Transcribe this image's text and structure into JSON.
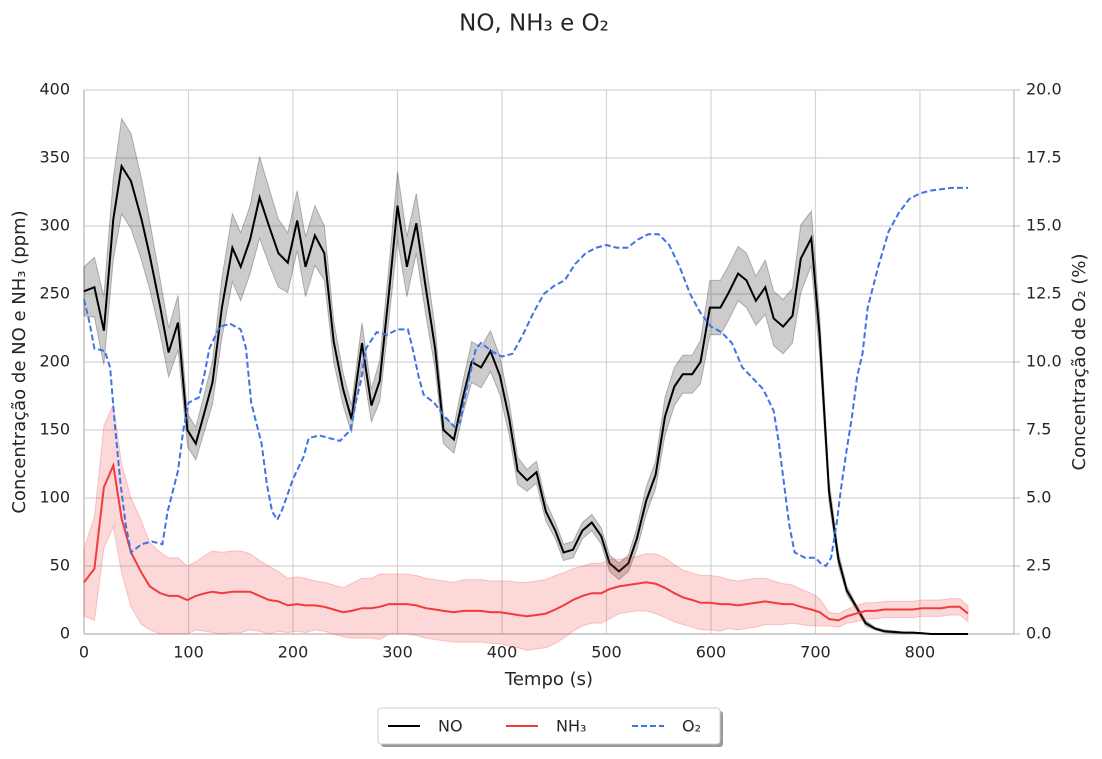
{
  "chart_data": {
    "type": "line",
    "title": "NO, NH₃ e O₂",
    "xlabel": "Tempo (s)",
    "ylabel": "Concentração de NO e NH₃ (ppm)",
    "y2label": "Concentração de O₂ (%)",
    "x": [
      0,
      10,
      19,
      28,
      36,
      45,
      55,
      63,
      73,
      81,
      90,
      99,
      107,
      116,
      123,
      132,
      142,
      150,
      159,
      168,
      177,
      186,
      195,
      204,
      212,
      221,
      230,
      239,
      248,
      256,
      266,
      275,
      283,
      292,
      300,
      309,
      318,
      327,
      336,
      344,
      354,
      363,
      371,
      380,
      389,
      398,
      407,
      415,
      424,
      433,
      442,
      451,
      459,
      468,
      477,
      486,
      495,
      503,
      512,
      521,
      529,
      538,
      547,
      556,
      565,
      573,
      582,
      590,
      599,
      609,
      617,
      626,
      634,
      643,
      652,
      660,
      669,
      678,
      686,
      696,
      704,
      713,
      722,
      730,
      739,
      748,
      757,
      766,
      775,
      784,
      793,
      802,
      811,
      820,
      829,
      838,
      846
    ],
    "series": [
      {
        "name": "NO",
        "color": "#000000",
        "values": [
          252,
          255,
          223,
          305,
          344,
          333,
          305,
          278,
          240,
          207,
          229,
          150,
          140,
          165,
          185,
          240,
          284,
          270,
          290,
          321,
          300,
          280,
          273,
          304,
          270,
          293,
          280,
          215,
          180,
          158,
          214,
          168,
          186,
          252,
          315,
          270,
          302,
          255,
          210,
          150,
          143,
          175,
          200,
          196,
          208,
          190,
          158,
          120,
          113,
          119,
          90,
          76,
          60,
          62,
          76,
          82,
          72,
          52,
          46,
          52,
          70,
          98,
          117,
          160,
          182,
          191,
          191,
          200,
          240,
          240,
          251,
          265,
          260,
          245,
          255,
          232,
          226,
          234,
          276,
          291,
          220,
          105,
          55,
          32,
          20,
          8,
          4,
          2,
          1.5,
          1,
          1,
          0.5,
          0,
          0,
          0,
          0,
          0
        ],
        "error": [
          18,
          22,
          25,
          30,
          35,
          35,
          30,
          25,
          20,
          18,
          20,
          12,
          12,
          14,
          16,
          22,
          25,
          25,
          25,
          30,
          28,
          25,
          22,
          22,
          22,
          22,
          20,
          15,
          12,
          10,
          15,
          12,
          15,
          20,
          25,
          22,
          22,
          20,
          15,
          10,
          10,
          12,
          15,
          15,
          15,
          14,
          12,
          10,
          8,
          8,
          7,
          6,
          6,
          6,
          6,
          6,
          6,
          6,
          6,
          6,
          8,
          10,
          10,
          14,
          14,
          14,
          14,
          16,
          20,
          20,
          20,
          20,
          20,
          18,
          20,
          20,
          20,
          20,
          25,
          20,
          15,
          8,
          5,
          3,
          2,
          2,
          1,
          1,
          1,
          0.5,
          0.5,
          0,
          0,
          0,
          0,
          0,
          0
        ]
      },
      {
        "name": "NH₃",
        "color": "#f03c3c",
        "values": [
          38,
          48,
          108,
          124,
          85,
          60,
          45,
          35,
          30,
          28,
          28,
          25,
          28,
          30,
          31,
          30,
          31,
          31,
          31,
          28,
          25,
          24,
          21,
          22,
          21,
          21,
          20,
          18,
          16,
          17,
          19,
          19,
          20,
          22,
          22,
          22,
          21,
          19,
          18,
          17,
          16,
          17,
          17,
          17,
          16,
          16,
          15,
          14,
          13,
          14,
          15,
          18,
          21,
          25,
          28,
          30,
          30,
          33,
          35,
          36,
          37,
          38,
          37,
          34,
          30,
          27,
          25,
          23,
          23,
          22,
          22,
          21,
          22,
          23,
          24,
          23,
          22,
          22,
          20,
          18,
          16,
          11,
          10,
          13,
          15,
          17,
          17,
          18,
          18,
          18,
          18,
          19,
          19,
          19,
          20,
          20,
          15
        ],
        "error": [
          25,
          38,
          45,
          45,
          40,
          40,
          38,
          32,
          30,
          28,
          28,
          25,
          25,
          28,
          30,
          30,
          30,
          30,
          28,
          26,
          25,
          22,
          20,
          20,
          20,
          18,
          18,
          18,
          18,
          20,
          22,
          22,
          24,
          22,
          22,
          22,
          22,
          22,
          22,
          22,
          22,
          23,
          23,
          23,
          23,
          23,
          24,
          24,
          25,
          25,
          25,
          25,
          24,
          23,
          22,
          22,
          22,
          22,
          20,
          20,
          20,
          21,
          22,
          22,
          21,
          20,
          20,
          20,
          20,
          20,
          18,
          18,
          18,
          18,
          17,
          16,
          15,
          14,
          13,
          12,
          10,
          5,
          5,
          5,
          6,
          6,
          6,
          6,
          6,
          6,
          6,
          6,
          6,
          6,
          6,
          6,
          6
        ]
      },
      {
        "name": "O₂",
        "color": "#3f73e8",
        "axis": "y2",
        "linestyle": "dashed",
        "x": [
          0,
          5,
          10,
          20,
          25,
          30,
          35,
          40,
          45,
          55,
          65,
          75,
          80,
          90,
          95,
          100,
          110,
          115,
          120,
          130,
          140,
          150,
          155,
          160,
          170,
          175,
          180,
          185,
          190,
          200,
          210,
          215,
          225,
          235,
          245,
          255,
          260,
          265,
          270,
          280,
          290,
          300,
          310,
          315,
          320,
          325,
          335,
          345,
          355,
          360,
          365,
          375,
          380,
          390,
          400,
          410,
          420,
          430,
          440,
          450,
          460,
          470,
          480,
          490,
          500,
          510,
          520,
          530,
          540,
          550,
          560,
          570,
          580,
          590,
          600,
          610,
          620,
          630,
          640,
          650,
          660,
          665,
          670,
          675,
          680,
          690,
          700,
          705,
          710,
          715,
          720,
          725,
          730,
          735,
          740,
          745,
          750,
          760,
          770,
          780,
          790,
          800,
          810,
          820,
          830,
          846
        ],
        "values": [
          12.3,
          11.5,
          10.5,
          10.4,
          9.8,
          7.5,
          5.5,
          4.0,
          3.0,
          3.3,
          3.4,
          3.3,
          4.5,
          6.0,
          7.5,
          8.5,
          8.7,
          9.5,
          10.5,
          11.3,
          11.4,
          11.2,
          10.5,
          8.5,
          7.0,
          5.5,
          4.5,
          4.2,
          4.6,
          5.7,
          6.5,
          7.2,
          7.3,
          7.2,
          7.1,
          7.5,
          8.5,
          9.3,
          10.5,
          11.1,
          11.0,
          11.2,
          11.2,
          10.4,
          9.5,
          8.8,
          8.5,
          8.0,
          7.6,
          7.8,
          8.8,
          10.5,
          10.7,
          10.4,
          10.2,
          10.3,
          11.0,
          11.8,
          12.5,
          12.8,
          13.0,
          13.6,
          14.0,
          14.2,
          14.3,
          14.2,
          14.2,
          14.5,
          14.7,
          14.7,
          14.3,
          13.5,
          12.5,
          11.8,
          11.3,
          11.1,
          10.7,
          9.8,
          9.4,
          9.0,
          8.2,
          7.0,
          5.5,
          4.0,
          3.0,
          2.8,
          2.8,
          2.6,
          2.5,
          2.8,
          4.0,
          5.5,
          6.8,
          8.0,
          9.5,
          10.3,
          12.0,
          13.5,
          14.8,
          15.5,
          16.0,
          16.2,
          16.3,
          16.35,
          16.4,
          16.4
        ]
      }
    ],
    "xlim": [
      0,
      890
    ],
    "xticks": [
      0,
      100,
      200,
      300,
      400,
      500,
      600,
      700,
      800
    ],
    "ylim": [
      0,
      400
    ],
    "yticks": [
      0,
      50,
      100,
      150,
      200,
      250,
      300,
      350,
      400
    ],
    "y2lim": [
      0,
      20
    ],
    "y2ticks": [
      {
        "value": 0,
        "label": "0.0"
      },
      2.5,
      {
        "value": 5,
        "label": "5.0"
      },
      7.5,
      {
        "value": 10,
        "label": "10.0"
      },
      12.5,
      {
        "value": 15,
        "label": "15.0"
      },
      17.5,
      {
        "value": 20,
        "label": "20.0"
      }
    ],
    "grid": true,
    "legend": "bottom"
  }
}
